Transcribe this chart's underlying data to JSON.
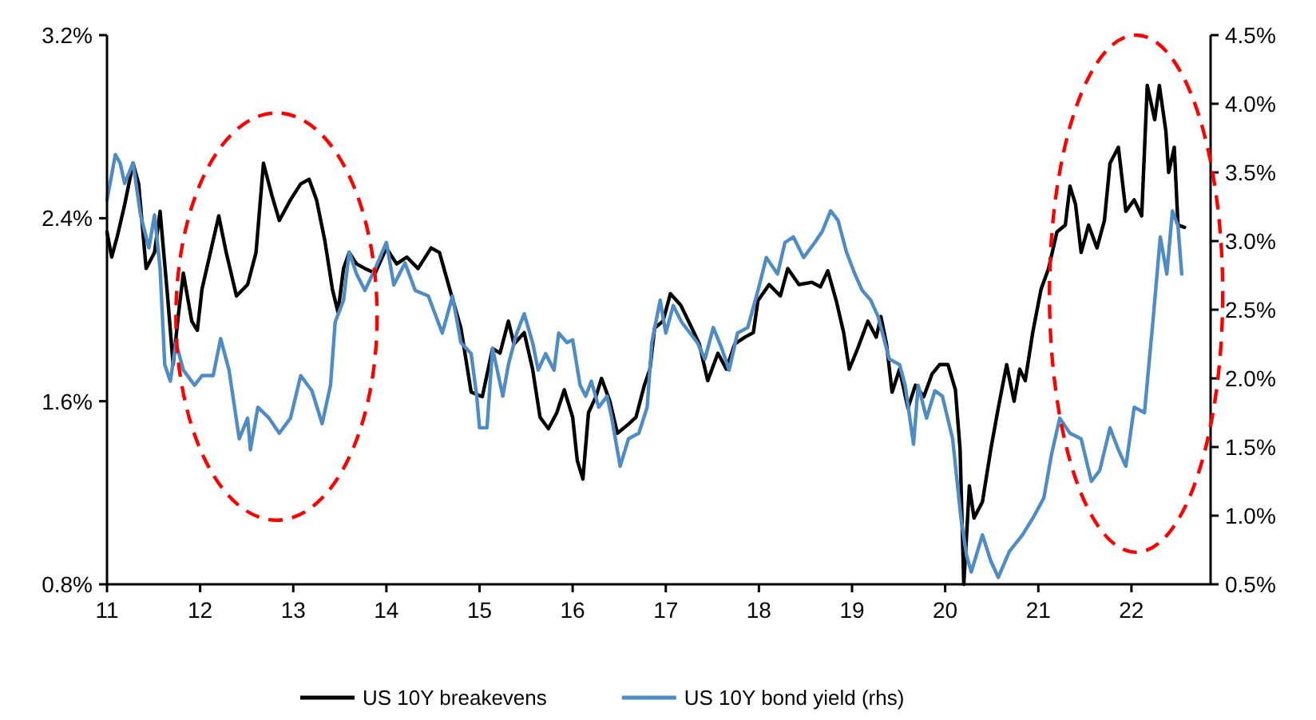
{
  "chart_data": {
    "type": "line",
    "xlim": [
      11,
      22.85
    ],
    "xticks": [
      11,
      12,
      13,
      14,
      15,
      16,
      17,
      18,
      19,
      20,
      21,
      22
    ],
    "ylim": [
      0.8,
      3.2
    ],
    "yticks": [
      {
        "value": 0.8,
        "label": "0.8%"
      },
      {
        "value": 1.6,
        "label": "1.6%"
      },
      {
        "value": 2.4,
        "label": "2.4%"
      },
      {
        "value": 3.2,
        "label": "3.2%"
      }
    ],
    "y2lim": [
      0.5,
      4.5
    ],
    "y2ticks": [
      {
        "value": 0.5,
        "label": "0.5%"
      },
      {
        "value": 1.0,
        "label": "1.0%"
      },
      {
        "value": 1.5,
        "label": "1.5%"
      },
      {
        "value": 2.0,
        "label": "2.0%"
      },
      {
        "value": 2.5,
        "label": "2.5%"
      },
      {
        "value": 3.0,
        "label": "3.0%"
      },
      {
        "value": 3.5,
        "label": "3.5%"
      },
      {
        "value": 4.0,
        "label": "4.0%"
      },
      {
        "value": 4.5,
        "label": "4.5%"
      }
    ],
    "grid": false,
    "legend": "bottom",
    "line_style": "solid",
    "marker": "none",
    "series": [
      {
        "name": "US 10Y breakevens",
        "color": "#000000",
        "x": [
          11.0,
          11.05,
          11.11,
          11.19,
          11.28,
          11.34,
          11.42,
          11.51,
          11.57,
          11.65,
          11.71,
          11.77,
          11.82,
          11.91,
          11.97,
          12.02,
          12.11,
          12.2,
          12.28,
          12.39,
          12.51,
          12.6,
          12.68,
          12.77,
          12.85,
          12.97,
          13.08,
          13.17,
          13.25,
          13.34,
          13.42,
          13.48,
          13.54,
          13.6,
          13.68,
          13.77,
          13.88,
          14.0,
          14.11,
          14.22,
          14.34,
          14.48,
          14.57,
          14.68,
          14.8,
          14.91,
          15.03,
          15.14,
          15.22,
          15.31,
          15.37,
          15.48,
          15.57,
          15.65,
          15.74,
          15.83,
          15.91,
          16.0,
          16.05,
          16.11,
          16.17,
          16.25,
          16.31,
          16.4,
          16.48,
          16.6,
          16.68,
          16.77,
          16.83,
          16.88,
          16.97,
          17.05,
          17.16,
          17.28,
          17.36,
          17.45,
          17.56,
          17.65,
          17.74,
          17.85,
          17.94,
          17.99,
          18.11,
          18.23,
          18.31,
          18.43,
          18.57,
          18.66,
          18.74,
          18.83,
          18.91,
          18.97,
          19.06,
          19.17,
          19.26,
          19.31,
          19.37,
          19.43,
          19.51,
          19.6,
          19.68,
          19.77,
          19.86,
          19.94,
          20.03,
          20.11,
          20.16,
          20.2,
          20.26,
          20.31,
          20.4,
          20.49,
          20.57,
          20.66,
          20.74,
          20.8,
          20.86,
          20.94,
          21.03,
          21.11,
          21.2,
          21.29,
          21.34,
          21.4,
          21.46,
          21.54,
          21.63,
          21.71,
          21.77,
          21.86,
          21.94,
          22.03,
          22.11,
          22.17,
          22.25,
          22.3,
          22.37,
          22.4,
          22.46,
          22.5,
          22.57
        ],
        "values": [
          2.34,
          2.23,
          2.32,
          2.46,
          2.64,
          2.55,
          2.18,
          2.25,
          2.43,
          2.06,
          1.76,
          1.99,
          2.16,
          1.95,
          1.91,
          2.09,
          2.25,
          2.41,
          2.25,
          2.06,
          2.11,
          2.25,
          2.64,
          2.5,
          2.39,
          2.48,
          2.55,
          2.57,
          2.48,
          2.3,
          2.09,
          1.99,
          2.18,
          2.25,
          2.2,
          2.18,
          2.16,
          2.27,
          2.2,
          2.23,
          2.18,
          2.27,
          2.25,
          2.09,
          1.92,
          1.64,
          1.62,
          1.83,
          1.81,
          1.95,
          1.85,
          1.9,
          1.74,
          1.53,
          1.48,
          1.55,
          1.65,
          1.53,
          1.34,
          1.26,
          1.55,
          1.62,
          1.7,
          1.6,
          1.46,
          1.5,
          1.53,
          1.67,
          1.74,
          1.92,
          1.95,
          2.07,
          2.02,
          1.92,
          1.85,
          1.69,
          1.81,
          1.74,
          1.85,
          1.88,
          1.9,
          2.04,
          2.11,
          2.06,
          2.18,
          2.11,
          2.12,
          2.1,
          2.17,
          2.04,
          1.9,
          1.74,
          1.83,
          1.95,
          1.88,
          1.97,
          1.85,
          1.64,
          1.74,
          1.57,
          1.67,
          1.62,
          1.72,
          1.76,
          1.76,
          1.65,
          1.39,
          0.8,
          1.23,
          1.09,
          1.16,
          1.39,
          1.57,
          1.76,
          1.6,
          1.74,
          1.69,
          1.9,
          2.09,
          2.18,
          2.34,
          2.37,
          2.54,
          2.46,
          2.25,
          2.37,
          2.27,
          2.39,
          2.64,
          2.71,
          2.43,
          2.48,
          2.41,
          2.98,
          2.83,
          2.98,
          2.78,
          2.6,
          2.71,
          2.37,
          2.36
        ]
      },
      {
        "name": "US 10Y bond yield (rhs)",
        "color": "#4f8bc4",
        "axis": "y2",
        "x": [
          11.0,
          11.09,
          11.14,
          11.19,
          11.28,
          11.36,
          11.45,
          11.51,
          11.57,
          11.62,
          11.68,
          11.74,
          11.82,
          11.94,
          12.02,
          12.14,
          12.22,
          12.31,
          12.42,
          12.51,
          12.54,
          12.62,
          12.74,
          12.85,
          12.97,
          13.08,
          13.2,
          13.31,
          13.4,
          13.45,
          13.54,
          13.6,
          13.68,
          13.77,
          13.88,
          14.0,
          14.08,
          14.2,
          14.31,
          14.45,
          14.6,
          14.71,
          14.8,
          14.91,
          14.97,
          15.0,
          15.08,
          15.14,
          15.25,
          15.31,
          15.4,
          15.48,
          15.57,
          15.63,
          15.71,
          15.8,
          15.85,
          15.94,
          16.0,
          16.08,
          16.14,
          16.2,
          16.28,
          16.37,
          16.42,
          16.51,
          16.6,
          16.71,
          16.8,
          16.85,
          16.94,
          17.0,
          17.08,
          17.17,
          17.26,
          17.34,
          17.42,
          17.51,
          17.6,
          17.68,
          17.77,
          17.88,
          17.99,
          18.08,
          18.2,
          18.28,
          18.37,
          18.48,
          18.6,
          18.68,
          18.77,
          18.85,
          18.94,
          19.03,
          19.11,
          19.2,
          19.28,
          19.4,
          19.51,
          19.57,
          19.66,
          19.71,
          19.8,
          19.89,
          19.97,
          20.08,
          20.17,
          20.23,
          20.28,
          20.4,
          20.49,
          20.57,
          20.69,
          20.83,
          20.94,
          21.06,
          21.14,
          21.23,
          21.34,
          21.46,
          21.57,
          21.66,
          21.77,
          21.86,
          21.94,
          22.03,
          22.14,
          22.23,
          22.31,
          22.38,
          22.44,
          22.5,
          22.54
        ],
        "values": [
          3.3,
          3.63,
          3.57,
          3.42,
          3.57,
          3.19,
          2.95,
          3.19,
          2.8,
          2.1,
          1.98,
          2.26,
          2.06,
          1.95,
          2.02,
          2.02,
          2.29,
          2.06,
          1.56,
          1.71,
          1.48,
          1.79,
          1.71,
          1.6,
          1.71,
          2.02,
          1.91,
          1.67,
          1.95,
          2.41,
          2.57,
          2.92,
          2.76,
          2.64,
          2.8,
          2.99,
          2.68,
          2.84,
          2.64,
          2.6,
          2.33,
          2.6,
          2.26,
          2.18,
          1.87,
          1.64,
          1.64,
          2.22,
          1.87,
          2.1,
          2.33,
          2.47,
          2.26,
          2.06,
          2.18,
          2.06,
          2.33,
          2.26,
          2.28,
          1.95,
          1.87,
          1.98,
          1.79,
          1.87,
          1.71,
          1.36,
          1.56,
          1.6,
          1.79,
          2.26,
          2.57,
          2.33,
          2.53,
          2.41,
          2.33,
          2.26,
          2.14,
          2.37,
          2.22,
          2.06,
          2.33,
          2.37,
          2.64,
          2.88,
          2.76,
          2.99,
          3.03,
          2.88,
          2.99,
          3.07,
          3.22,
          3.15,
          2.92,
          2.76,
          2.64,
          2.57,
          2.45,
          2.14,
          2.1,
          1.95,
          1.52,
          1.95,
          1.71,
          1.91,
          1.87,
          1.56,
          0.98,
          0.71,
          0.59,
          0.86,
          0.67,
          0.55,
          0.74,
          0.86,
          0.98,
          1.13,
          1.44,
          1.71,
          1.6,
          1.56,
          1.25,
          1.33,
          1.64,
          1.48,
          1.36,
          1.79,
          1.75,
          2.41,
          3.03,
          2.76,
          3.22,
          3.11,
          2.76
        ]
      }
    ]
  }
}
